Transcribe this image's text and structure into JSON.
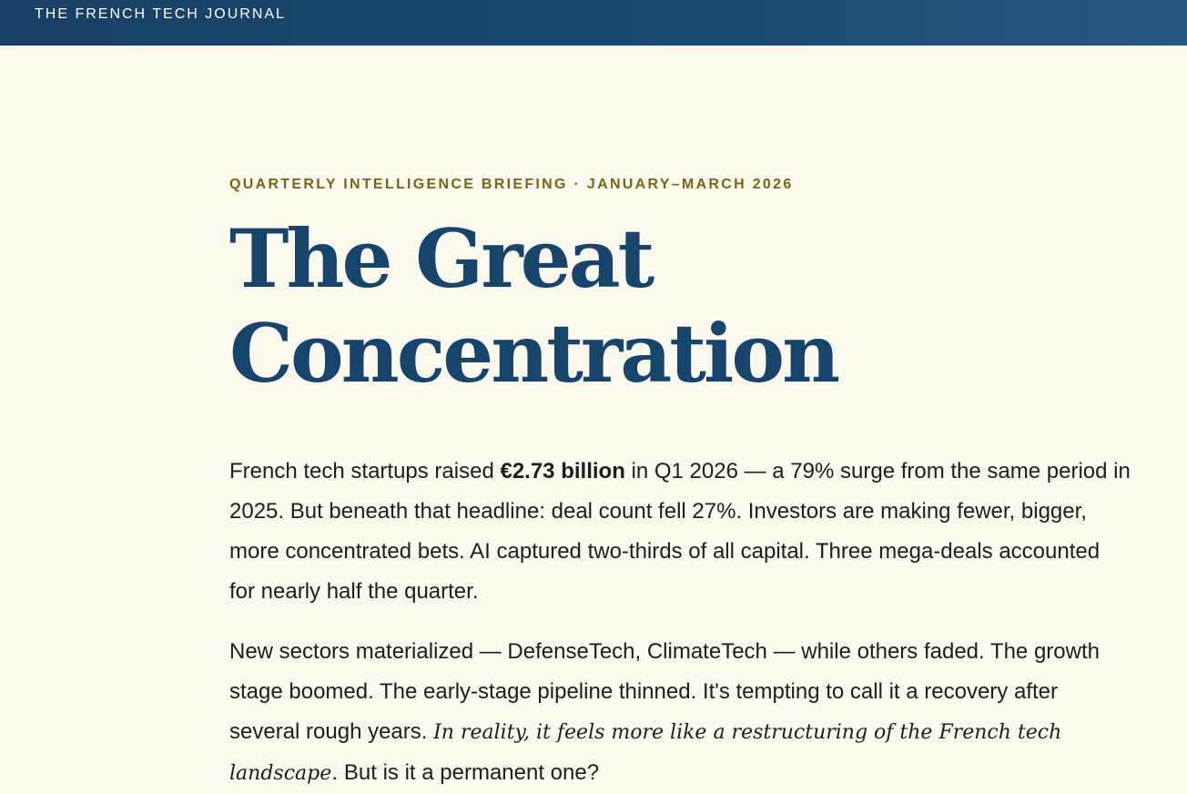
{
  "header": {
    "brand": "THE FRENCH TECH JOURNAL"
  },
  "article": {
    "kicker": "QUARTERLY INTELLIGENCE BRIEFING · JANUARY–MARCH 2026",
    "title_line_1": "The Great",
    "title_line_2": "Concentration",
    "paragraph_1": {
      "before": "French tech startups raised ",
      "strong": "€2.73 billion",
      "after": " in Q1 2026 — a 79% surge from the same period in 2025. But beneath that headline: deal count fell 27%. Investors are making fewer, bigger, more concentrated bets. AI captured two-thirds of all capital. Three mega-deals accounted for nearly half the quarter."
    },
    "paragraph_2": {
      "before": "New sectors materialized — DefenseTech, ClimateTech — while others faded. The growth stage boomed. The early-stage pipeline thinned. It's tempting to call it a recovery after several rough years. ",
      "italic": "In reality, it feels more like a restructuring of the French tech landscape.",
      "after": " But is it a permanent one?"
    }
  },
  "colors": {
    "header_background": "#1b4a70",
    "page_background": "#fcf9ee",
    "kicker": "#7c6414",
    "headline": "#17446b",
    "body_text": "#1e1e1e"
  }
}
